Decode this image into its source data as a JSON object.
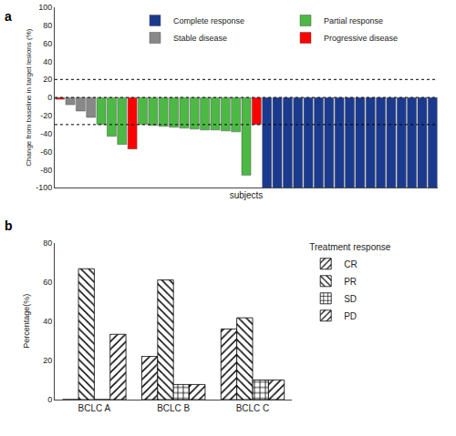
{
  "chart_data": [
    {
      "type": "bar",
      "title": "a",
      "xlabel": "subjects",
      "ylabel": "Change from baseline in target lesions (%)",
      "categories": [
        null,
        null,
        null,
        null,
        null,
        null,
        null,
        null,
        null,
        null,
        null,
        null,
        null,
        null,
        null,
        null,
        null,
        null,
        null,
        null,
        null,
        null,
        null,
        null,
        null,
        null,
        null,
        null,
        null,
        null,
        null,
        null,
        null,
        null,
        null,
        null,
        null
      ],
      "series": [
        {
          "name": "Complete response",
          "color": "#1a3a8f",
          "values": [
            null,
            null,
            null,
            null,
            null,
            null,
            null,
            null,
            null,
            null,
            null,
            null,
            null,
            null,
            null,
            null,
            null,
            null,
            null,
            null,
            -100,
            -100,
            -100,
            -100,
            -100,
            -100,
            -100,
            -100,
            -100,
            -100,
            -100,
            -100,
            -100,
            -100,
            -100,
            -100,
            -100
          ]
        },
        {
          "name": "Partial response",
          "color": "#4cb944",
          "values": [
            null,
            null,
            null,
            null,
            -30,
            -43,
            -52,
            null,
            -30,
            -31,
            -32,
            -33,
            -34,
            -35,
            -36,
            -36,
            -37,
            -38,
            -86,
            null,
            null,
            null,
            null,
            null,
            null,
            null,
            null,
            null,
            null,
            null,
            null,
            null,
            null,
            null,
            null,
            null,
            null
          ]
        },
        {
          "name": "Stable disease",
          "color": "#888888",
          "values": [
            null,
            -8,
            -15,
            -22,
            null,
            null,
            null,
            null,
            null,
            null,
            null,
            null,
            null,
            null,
            null,
            null,
            null,
            null,
            null,
            null,
            null,
            null,
            null,
            null,
            null,
            null,
            null,
            null,
            null,
            null,
            null,
            null,
            null,
            null,
            null,
            null,
            null
          ]
        },
        {
          "name": "Progressive disease",
          "color": "#ff0000",
          "values": [
            -2,
            null,
            null,
            null,
            null,
            null,
            null,
            -57,
            null,
            null,
            null,
            null,
            null,
            null,
            null,
            null,
            null,
            null,
            null,
            -30,
            null,
            null,
            null,
            null,
            null,
            null,
            null,
            null,
            null,
            null,
            null,
            null,
            null,
            null,
            null,
            null,
            null
          ]
        }
      ],
      "hlines": [
        20,
        0,
        -30
      ],
      "ylim": [
        -100,
        100
      ],
      "yticks": [
        -100,
        -80,
        -60,
        -40,
        -20,
        0,
        20,
        40,
        60,
        80,
        100
      ],
      "tick_labels": "y",
      "grid": false,
      "legend": "upper right"
    },
    {
      "type": "bar",
      "title": "b",
      "ylabel": "Percentage(%)",
      "legend_title": "Treatment response",
      "categories": [
        "BCLC A",
        "BCLC B",
        "BCLC C"
      ],
      "series": [
        {
          "name": "CR",
          "color": "#ffffff",
          "marker": "forward_hatch",
          "values": [
            0.0,
            22.0,
            36.0
          ]
        },
        {
          "name": "PR",
          "color": "#ffffff",
          "marker": "back_hatch",
          "values": [
            66.7,
            61.0,
            41.7
          ]
        },
        {
          "name": "SD",
          "color": "#ffffff",
          "marker": "cross",
          "values": [
            0.0,
            7.7,
            10.0
          ]
        },
        {
          "name": "PD",
          "color": "#ffffff",
          "marker": "forward_hatch",
          "values": [
            33.3,
            7.7,
            10.0
          ]
        }
      ],
      "ylim": [
        0,
        80
      ],
      "yticks": [
        0,
        20,
        40,
        60,
        80
      ],
      "grid": false,
      "legend": "right"
    }
  ]
}
